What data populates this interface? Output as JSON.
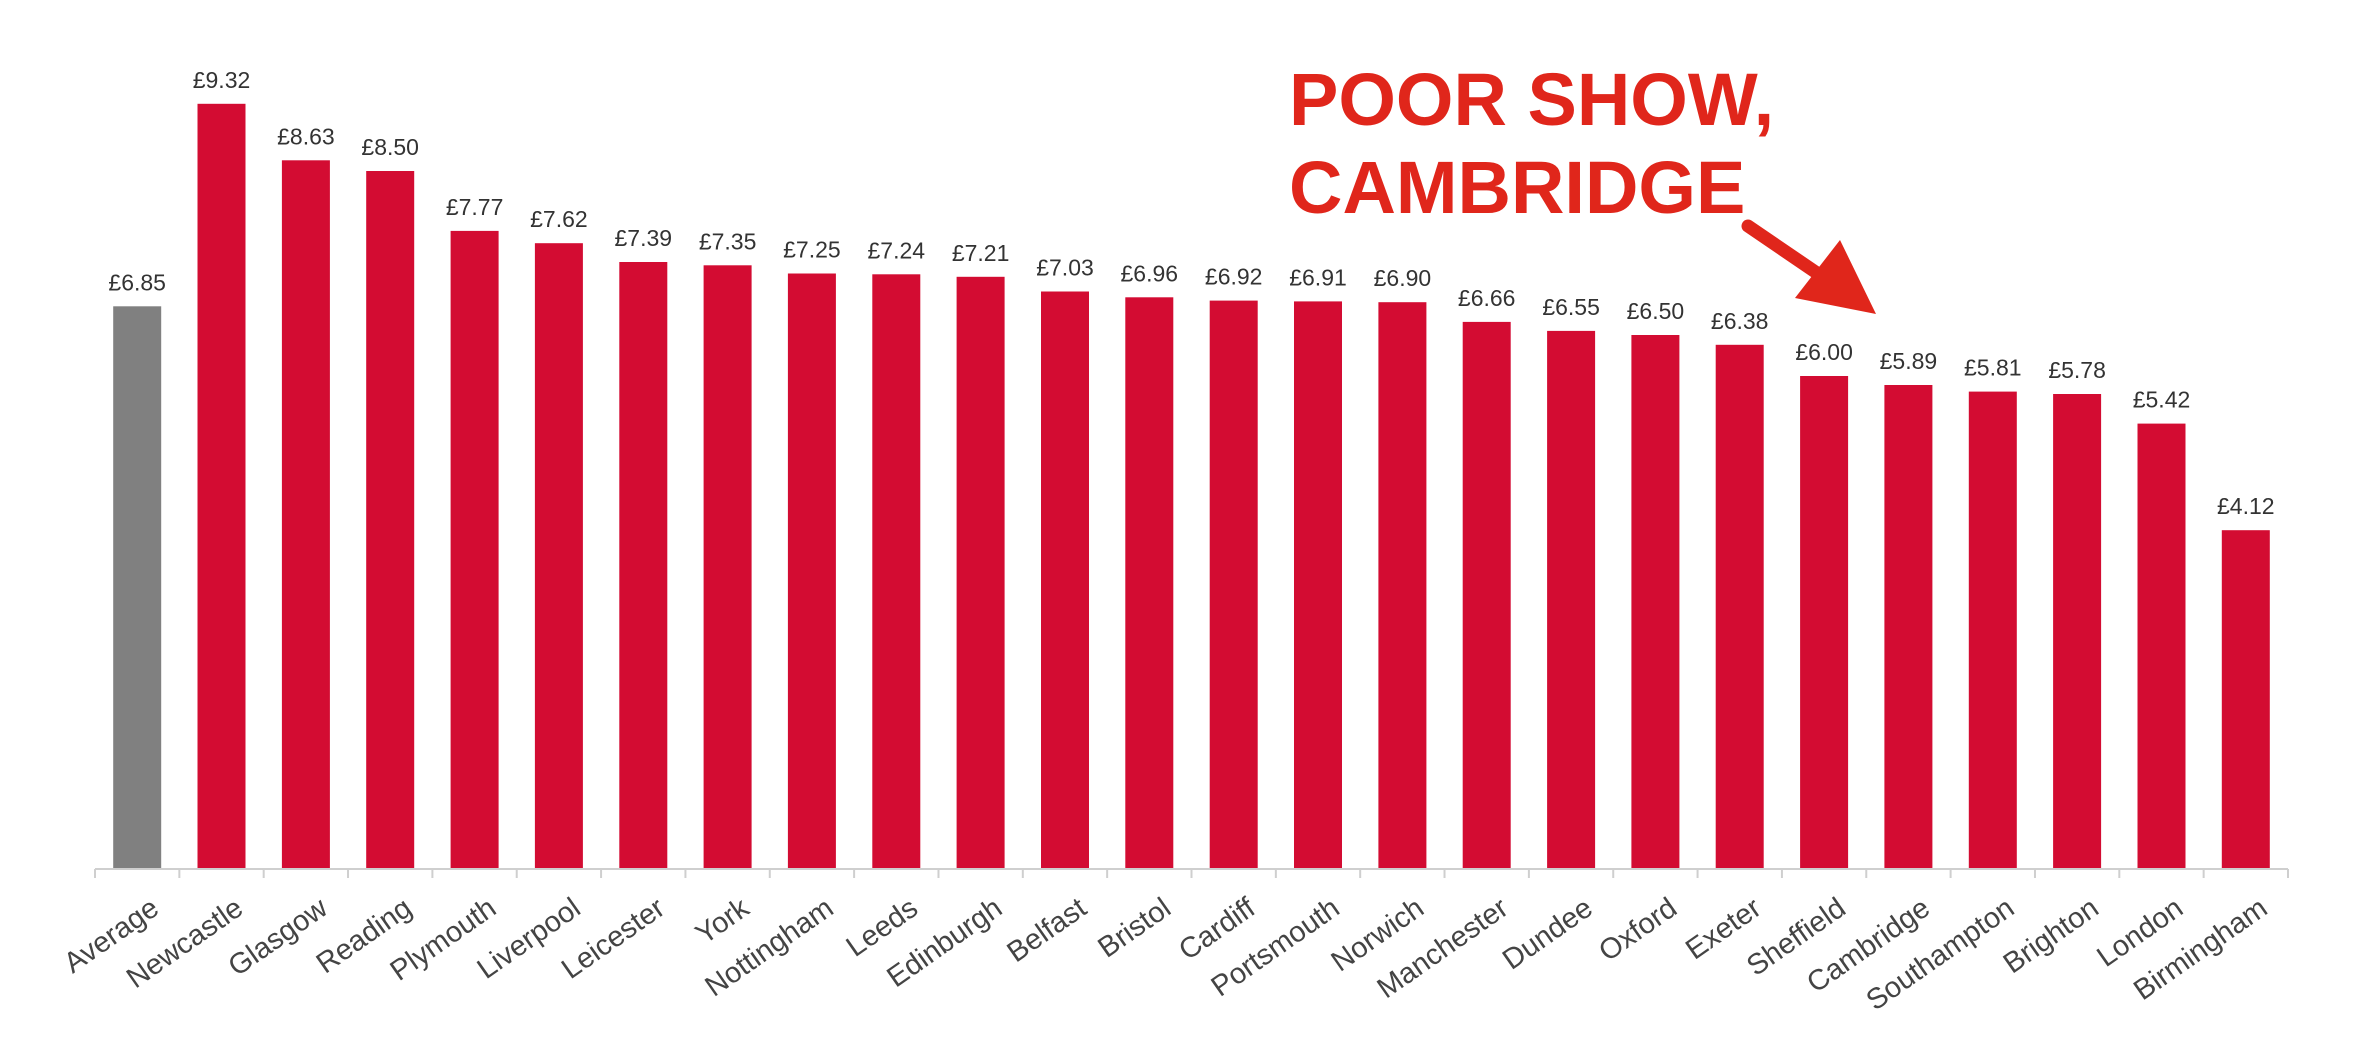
{
  "chart_data": {
    "type": "bar",
    "categories": [
      "Average",
      "Newcastle",
      "Glasgow",
      "Reading",
      "Plymouth",
      "Liverpool",
      "Leicester",
      "York",
      "Nottingham",
      "Leeds",
      "Edinburgh",
      "Belfast",
      "Bristol",
      "Cardiff",
      "Portsmouth",
      "Norwich",
      "Manchester",
      "Dundee",
      "Oxford",
      "Exeter",
      "Sheffield",
      "Cambridge",
      "Southampton",
      "Brighton",
      "London",
      "Birmingham"
    ],
    "values": [
      6.85,
      9.32,
      8.63,
      8.5,
      7.77,
      7.62,
      7.39,
      7.35,
      7.25,
      7.24,
      7.21,
      7.03,
      6.96,
      6.92,
      6.91,
      6.9,
      6.66,
      6.55,
      6.5,
      6.38,
      6.0,
      5.89,
      5.81,
      5.78,
      5.42,
      4.12
    ],
    "data_labels": [
      "£6.85",
      "£9.32",
      "£8.63",
      "£8.50",
      "£7.77",
      "£7.62",
      "£7.39",
      "£7.35",
      "£7.25",
      "£7.24",
      "£7.21",
      "£7.03",
      "£6.96",
      "£6.92",
      "£6.91",
      "£6.90",
      "£6.66",
      "£6.55",
      "£6.50",
      "£6.38",
      "£6.00",
      "£5.89",
      "£5.81",
      "£5.78",
      "£5.42",
      "£4.12"
    ],
    "title": "",
    "xlabel": "",
    "ylabel": "",
    "ylim": [
      0,
      10
    ],
    "grid": false,
    "colors": {
      "average": "#808080",
      "bars": "#d30c32",
      "axis": "#cfcfcf"
    },
    "annotation": {
      "lines": [
        "POOR SHOW,",
        "CAMBRIDGE"
      ],
      "points_to": "Cambridge",
      "color": "#e0261b"
    }
  }
}
